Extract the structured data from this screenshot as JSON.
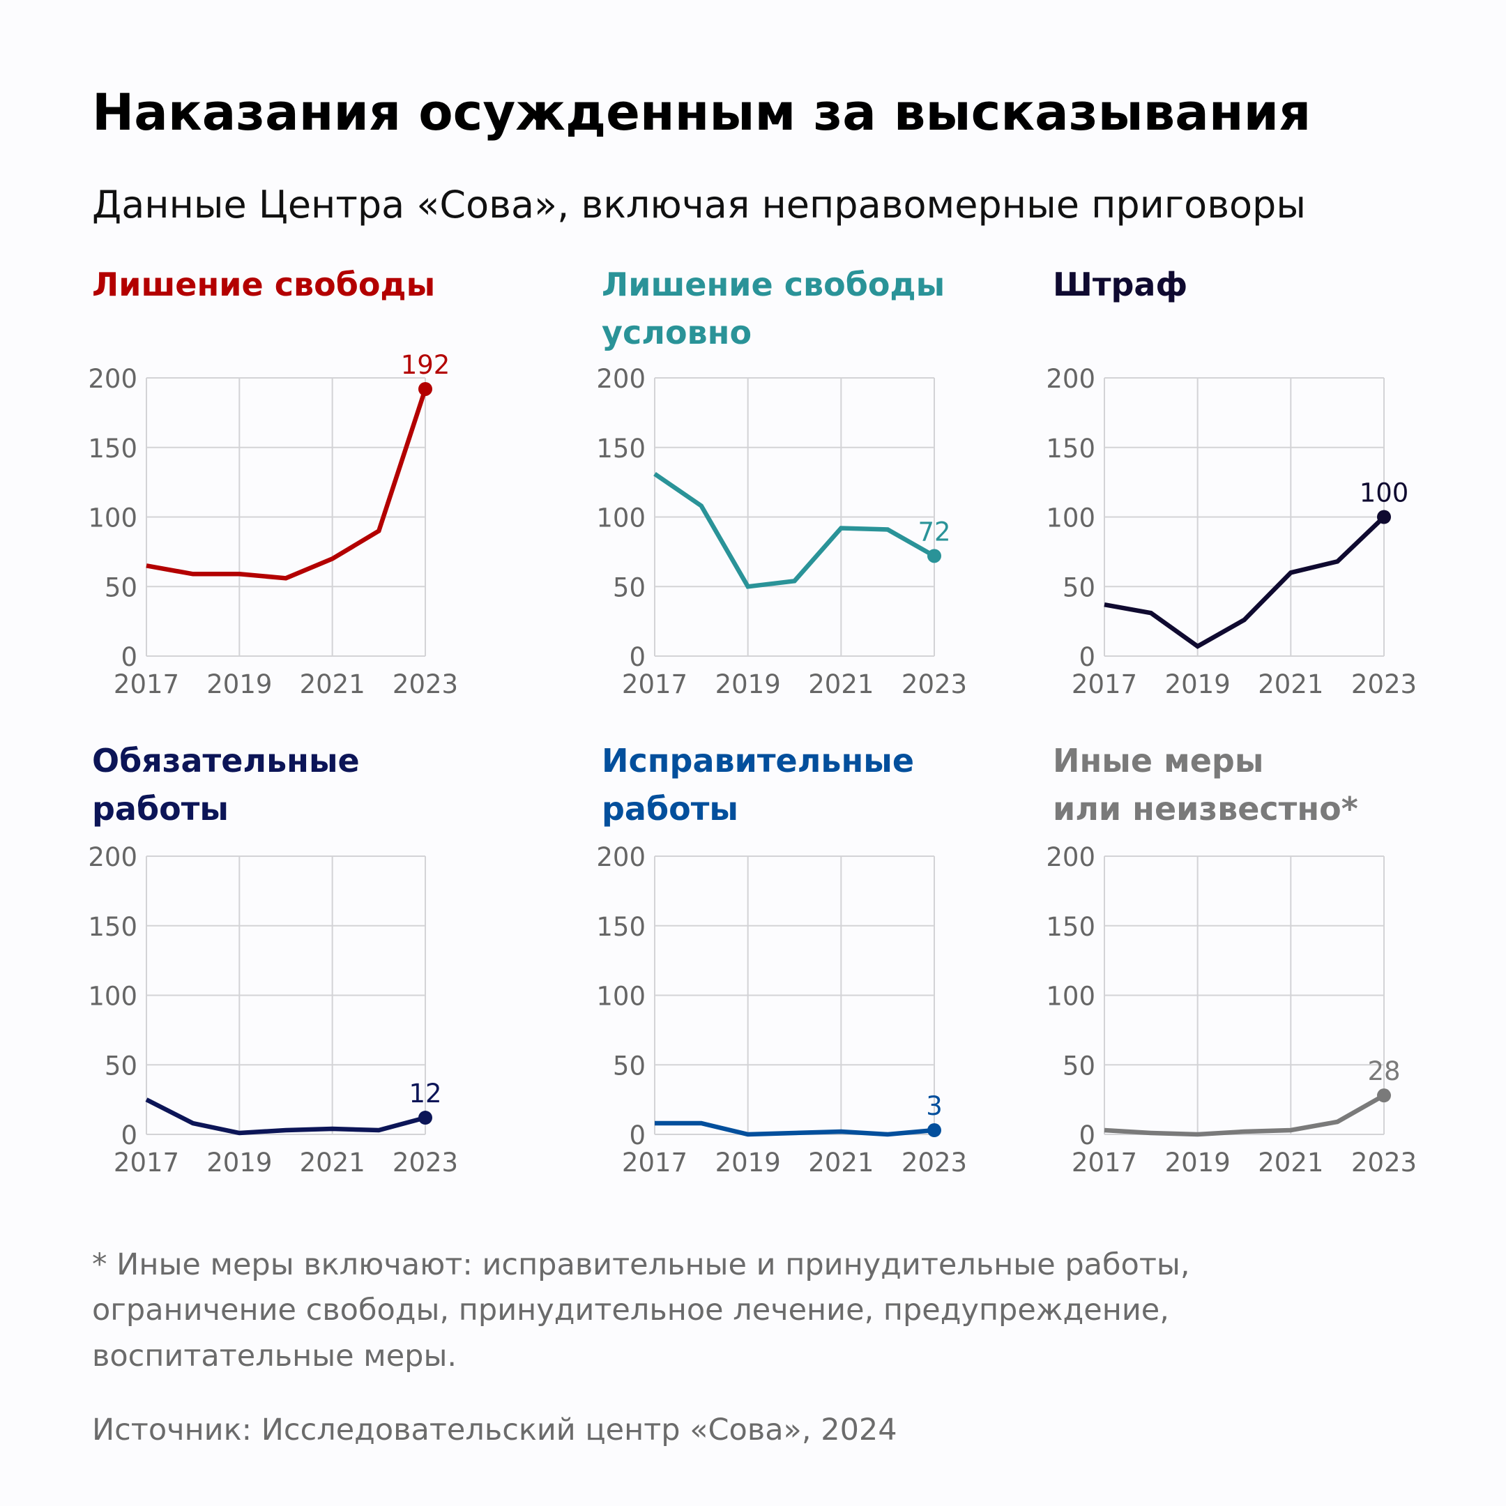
{
  "header": {
    "title": "Наказания осужденным за высказывания",
    "subtitle": "Данные Центра «Сова», включая неправомерные приговоры"
  },
  "footer": {
    "note_lines": [
      "* Иные меры включают: исправительные и принудительные работы,",
      "ограничение свободы, принудительное лечение, предупреждение,",
      "воспитательные меры."
    ],
    "source": "Источник: Исследовательский центр «Сова», 2024"
  },
  "chart_data": [
    {
      "type": "line",
      "title_lines": [
        "Лишение свободы"
      ],
      "color": "#b30000",
      "x": [
        2017,
        2018,
        2019,
        2020,
        2021,
        2022,
        2023
      ],
      "values": [
        65,
        59,
        59,
        56,
        70,
        90,
        192
      ],
      "end_label": "192",
      "xticks": [
        "2017",
        "2019",
        "2021",
        "2023"
      ],
      "yticks": [
        "0",
        "50",
        "100",
        "150",
        "200"
      ],
      "ylim": [
        0,
        200
      ],
      "grid": true
    },
    {
      "type": "line",
      "title_lines": [
        "Лишение свободы",
        "условно"
      ],
      "color": "#2a9398",
      "x": [
        2017,
        2018,
        2019,
        2020,
        2021,
        2022,
        2023
      ],
      "values": [
        131,
        108,
        50,
        54,
        92,
        91,
        72
      ],
      "end_label": "72",
      "xticks": [
        "2017",
        "2019",
        "2021",
        "2023"
      ],
      "yticks": [
        "0",
        "50",
        "100",
        "150",
        "200"
      ],
      "ylim": [
        0,
        200
      ],
      "grid": true
    },
    {
      "type": "line",
      "title_lines": [
        "Штраф"
      ],
      "color": "#0f0a30",
      "x": [
        2017,
        2018,
        2019,
        2020,
        2021,
        2022,
        2023
      ],
      "values": [
        37,
        31,
        7,
        26,
        60,
        68,
        100
      ],
      "end_label": "100",
      "xticks": [
        "2017",
        "2019",
        "2021",
        "2023"
      ],
      "yticks": [
        "0",
        "50",
        "100",
        "150",
        "200"
      ],
      "ylim": [
        0,
        200
      ],
      "grid": true
    },
    {
      "type": "line",
      "title_lines": [
        "Обязательные",
        "работы"
      ],
      "color": "#0c1557",
      "x": [
        2017,
        2018,
        2019,
        2020,
        2021,
        2022,
        2023
      ],
      "values": [
        25,
        8,
        1,
        3,
        4,
        3,
        12
      ],
      "end_label": "12",
      "xticks": [
        "2017",
        "2019",
        "2021",
        "2023"
      ],
      "yticks": [
        "0",
        "50",
        "100",
        "150",
        "200"
      ],
      "ylim": [
        0,
        200
      ],
      "grid": true
    },
    {
      "type": "line",
      "title_lines": [
        "Исправительные",
        "работы"
      ],
      "color": "#034f9c",
      "x": [
        2017,
        2018,
        2019,
        2020,
        2021,
        2022,
        2023
      ],
      "values": [
        8,
        8,
        0,
        1,
        2,
        0,
        3
      ],
      "end_label": "3",
      "xticks": [
        "2017",
        "2019",
        "2021",
        "2023"
      ],
      "yticks": [
        "0",
        "50",
        "100",
        "150",
        "200"
      ],
      "ylim": [
        0,
        200
      ],
      "grid": true
    },
    {
      "type": "line",
      "title_lines": [
        "Иные меры",
        "или неизвестно*"
      ],
      "color": "#7a7a7a",
      "x": [
        2017,
        2018,
        2019,
        2020,
        2021,
        2022,
        2023
      ],
      "values": [
        3,
        1,
        0,
        2,
        3,
        9,
        28
      ],
      "end_label": "28",
      "xticks": [
        "2017",
        "2019",
        "2021",
        "2023"
      ],
      "yticks": [
        "0",
        "50",
        "100",
        "150",
        "200"
      ],
      "ylim": [
        0,
        200
      ],
      "grid": true
    }
  ]
}
